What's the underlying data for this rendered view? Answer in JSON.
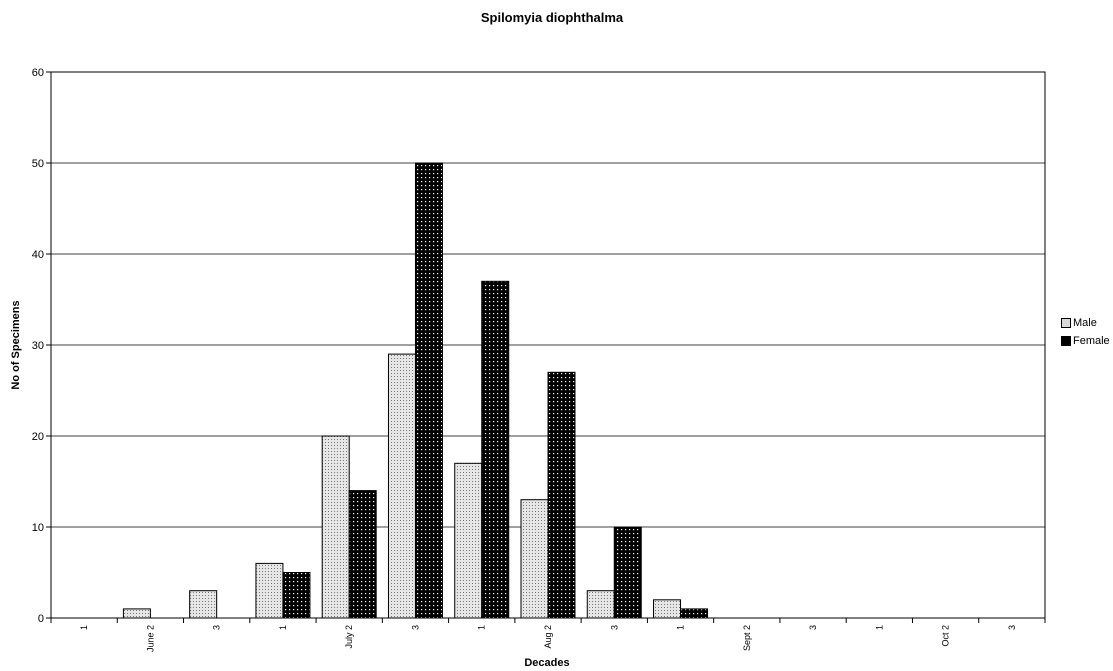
{
  "chart_data": {
    "type": "bar",
    "title": "Spilomyia diophthalma",
    "xlabel": "Decades",
    "ylabel": "No of Specimens",
    "ylim": [
      0,
      60
    ],
    "yticks": [
      0,
      10,
      20,
      30,
      40,
      50,
      60
    ],
    "grid": true,
    "legend_position": "right",
    "categories": [
      "1",
      "June 2",
      "3",
      "1",
      "July 2",
      "3",
      "1",
      "Aug 2",
      "3",
      "1",
      "Sept 2",
      "3",
      "1",
      "Oct 2",
      "3"
    ],
    "series": [
      {
        "name": "Male",
        "color": "#d8d8d8",
        "values": [
          0,
          1,
          3,
          6,
          20,
          29,
          17,
          13,
          3,
          2,
          0,
          0,
          0,
          0,
          0
        ]
      },
      {
        "name": "Female",
        "color": "#000000",
        "values": [
          0,
          0,
          0,
          5,
          14,
          50,
          37,
          27,
          10,
          1,
          0,
          0,
          0,
          0,
          0
        ]
      }
    ]
  }
}
